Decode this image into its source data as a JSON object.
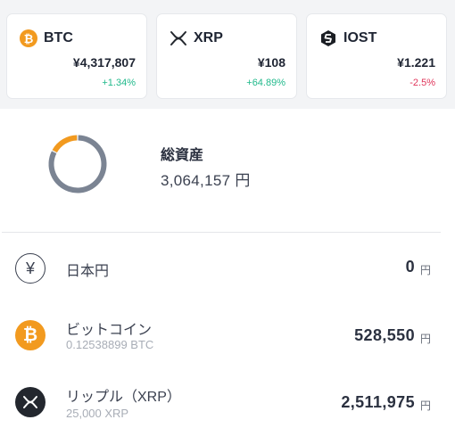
{
  "tickers": [
    {
      "symbol": "BTC",
      "price": "¥4,317,807",
      "change": "+1.34%",
      "direction": "up",
      "icon": "bitcoin-icon"
    },
    {
      "symbol": "XRP",
      "price": "¥108",
      "change": "+64.89%",
      "direction": "up",
      "icon": "xrp-icon"
    },
    {
      "symbol": "IOST",
      "price": "¥1.221",
      "change": "-2.5%",
      "direction": "down",
      "icon": "iost-icon"
    }
  ],
  "summary": {
    "title": "総資産",
    "total": "3,064,157 円",
    "allocation": [
      {
        "asset": "ビットコイン",
        "share": 0.1725,
        "color": "#f29a1f"
      },
      {
        "asset": "リップル（XRP）",
        "share": 0.8198,
        "color": "#7b8493"
      }
    ]
  },
  "holdings": [
    {
      "name": "日本円",
      "sub": "",
      "amount": "0",
      "unit": "円",
      "icon": "yen-icon"
    },
    {
      "name": "ビットコイン",
      "sub": "0.12538899 BTC",
      "amount": "528,550",
      "unit": "円",
      "icon": "bitcoin-icon"
    },
    {
      "name": "リップル（XRP）",
      "sub": "25,000 XRP",
      "amount": "2,511,975",
      "unit": "円",
      "icon": "xrp-icon"
    }
  ],
  "colors": {
    "accent_up": "#20b98b",
    "accent_down": "#e0355a",
    "bitcoin": "#f29a1f",
    "xrp": "#23272e"
  }
}
